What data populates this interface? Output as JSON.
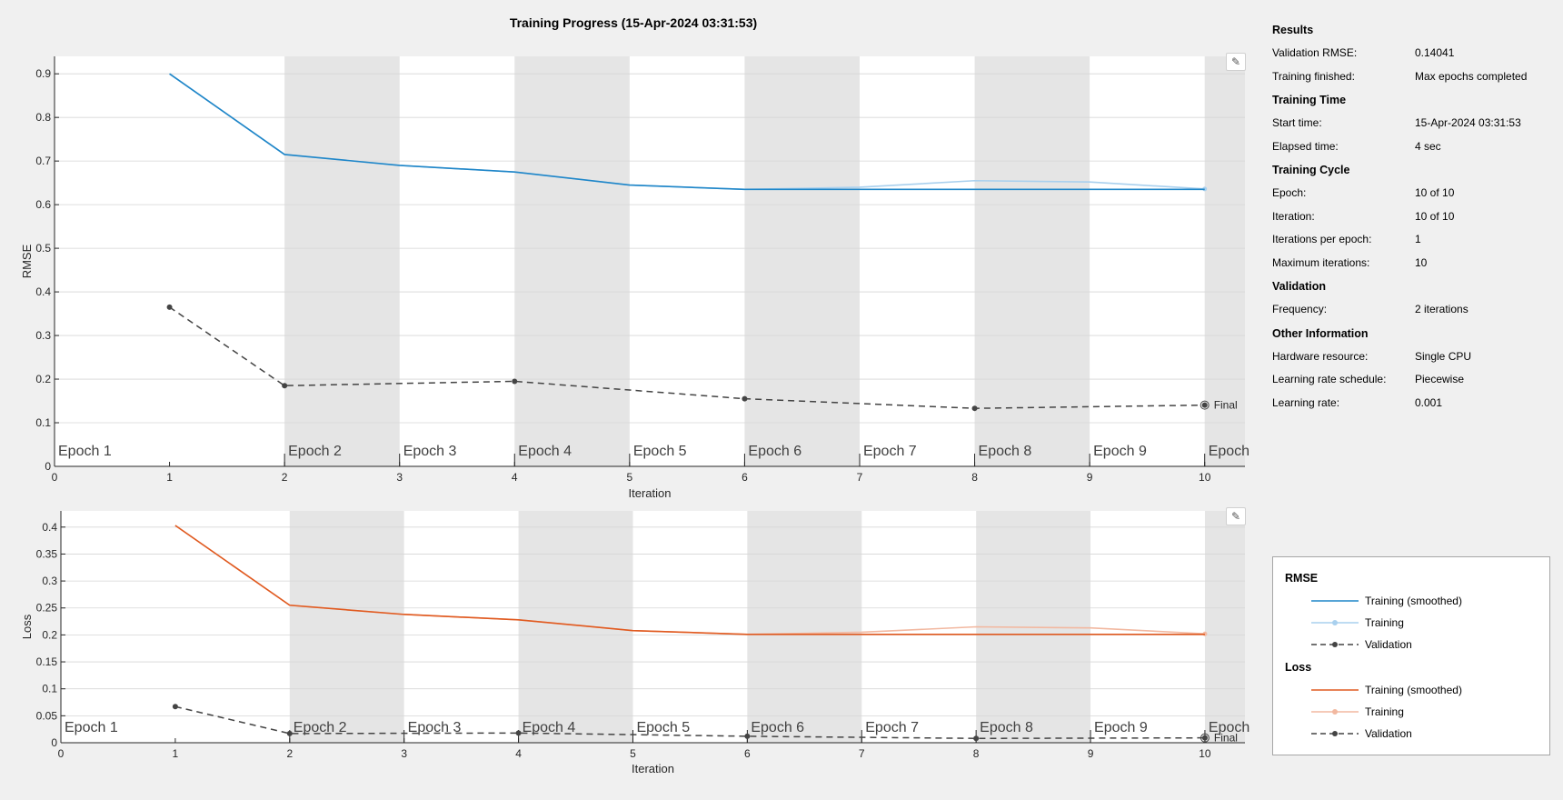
{
  "title": "Training Progress (15-Apr-2024 03:31:53)",
  "colors": {
    "rmse_smoothed": "#1f86c8",
    "rmse_training": "#a9d0ee",
    "loss_smoothed": "#e05a20",
    "loss_training": "#f2b8a0",
    "validation": "#444444",
    "band": "#e5e5e5"
  },
  "toolbar": {
    "edit_icon": "axes-edit-icon"
  },
  "results": {
    "results_title": "Results",
    "validation_rmse_label": "Validation RMSE:",
    "validation_rmse_value": "0.14041",
    "training_finished_label": "Training finished:",
    "training_finished_value": "Max epochs completed",
    "training_time_title": "Training Time",
    "start_time_label": "Start time:",
    "start_time_value": "15-Apr-2024 03:31:53",
    "elapsed_time_label": "Elapsed time:",
    "elapsed_time_value": "4 sec",
    "training_cycle_title": "Training Cycle",
    "epoch_label": "Epoch:",
    "epoch_value": "10 of 10",
    "iteration_label": "Iteration:",
    "iteration_value": "10 of 10",
    "iters_per_epoch_label": "Iterations per epoch:",
    "iters_per_epoch_value": "1",
    "max_iterations_label": "Maximum iterations:",
    "max_iterations_value": "10",
    "validation_title": "Validation",
    "frequency_label": "Frequency:",
    "frequency_value": "2 iterations",
    "other_info_title": "Other Information",
    "hardware_label": "Hardware resource:",
    "hardware_value": "Single CPU",
    "lr_schedule_label": "Learning rate schedule:",
    "lr_schedule_value": "Piecewise",
    "lr_label": "Learning rate:",
    "lr_value": "0.001"
  },
  "legend": {
    "rmse_title": "RMSE",
    "loss_title": "Loss",
    "training_smoothed": "Training (smoothed)",
    "training": "Training",
    "validation": "Validation"
  },
  "chart_data": [
    {
      "type": "line",
      "name": "rmse",
      "ylabel": "RMSE",
      "xlabel": "Iteration",
      "xlim": [
        0,
        10.35
      ],
      "ylim": [
        0,
        0.94
      ],
      "yticks": [
        0,
        0.1,
        0.2,
        0.3,
        0.4,
        0.5,
        0.6,
        0.7,
        0.8,
        0.9
      ],
      "yticklabels": [
        "0",
        "0.1",
        "0.2",
        "0.3",
        "0.4",
        "0.5",
        "0.6",
        "0.7",
        "0.8",
        "0.9"
      ],
      "xticks": [
        0,
        1,
        2,
        3,
        4,
        5,
        6,
        7,
        8,
        9,
        10
      ],
      "epoch_labels": [
        "Epoch 1",
        "Epoch 2",
        "Epoch 3",
        "Epoch 4",
        "Epoch 5",
        "Epoch 6",
        "Epoch 7",
        "Epoch 8",
        "Epoch 9",
        "Epoch"
      ],
      "series": [
        {
          "name": "Training (smoothed)",
          "x": [
            1,
            2,
            3,
            4,
            5,
            6,
            7,
            8,
            9,
            10
          ],
          "values": [
            0.9,
            0.715,
            0.69,
            0.675,
            0.645,
            0.635,
            0.635,
            0.635,
            0.635,
            0.635
          ]
        },
        {
          "name": "Training",
          "x": [
            1,
            2,
            3,
            4,
            5,
            6,
            7,
            8,
            9,
            10
          ],
          "values": [
            0.9,
            0.715,
            0.69,
            0.675,
            0.645,
            0.635,
            0.64,
            0.655,
            0.652,
            0.636
          ]
        },
        {
          "name": "Validation",
          "x": [
            1,
            2,
            4,
            6,
            8,
            10
          ],
          "values": [
            0.365,
            0.185,
            0.195,
            0.155,
            0.133,
            0.14041
          ]
        }
      ],
      "final_label": "Final",
      "grid": true
    },
    {
      "type": "line",
      "name": "loss",
      "ylabel": "Loss",
      "xlabel": "Iteration",
      "xlim": [
        0,
        10.35
      ],
      "ylim": [
        0,
        0.43
      ],
      "yticks": [
        0,
        0.05,
        0.1,
        0.15,
        0.2,
        0.25,
        0.3,
        0.35,
        0.4
      ],
      "yticklabels": [
        "0",
        "0.05",
        "0.1",
        "0.15",
        "0.2",
        "0.25",
        "0.3",
        "0.35",
        "0.4"
      ],
      "xticks": [
        0,
        1,
        2,
        3,
        4,
        5,
        6,
        7,
        8,
        9,
        10
      ],
      "epoch_labels": [
        "Epoch 1",
        "Epoch 2",
        "Epoch 3",
        "Epoch 4",
        "Epoch 5",
        "Epoch 6",
        "Epoch 7",
        "Epoch 8",
        "Epoch 9",
        "Epoch"
      ],
      "series": [
        {
          "name": "Training (smoothed)",
          "x": [
            1,
            2,
            3,
            4,
            5,
            6,
            7,
            8,
            9,
            10
          ],
          "values": [
            0.403,
            0.255,
            0.238,
            0.228,
            0.208,
            0.201,
            0.201,
            0.201,
            0.201,
            0.201
          ]
        },
        {
          "name": "Training",
          "x": [
            1,
            2,
            3,
            4,
            5,
            6,
            7,
            8,
            9,
            10
          ],
          "values": [
            0.403,
            0.255,
            0.238,
            0.228,
            0.208,
            0.201,
            0.205,
            0.215,
            0.213,
            0.202
          ]
        },
        {
          "name": "Validation",
          "x": [
            1,
            2,
            4,
            6,
            8,
            10
          ],
          "values": [
            0.067,
            0.017,
            0.018,
            0.012,
            0.008,
            0.009
          ]
        }
      ],
      "final_label": "Final",
      "grid": true
    }
  ]
}
